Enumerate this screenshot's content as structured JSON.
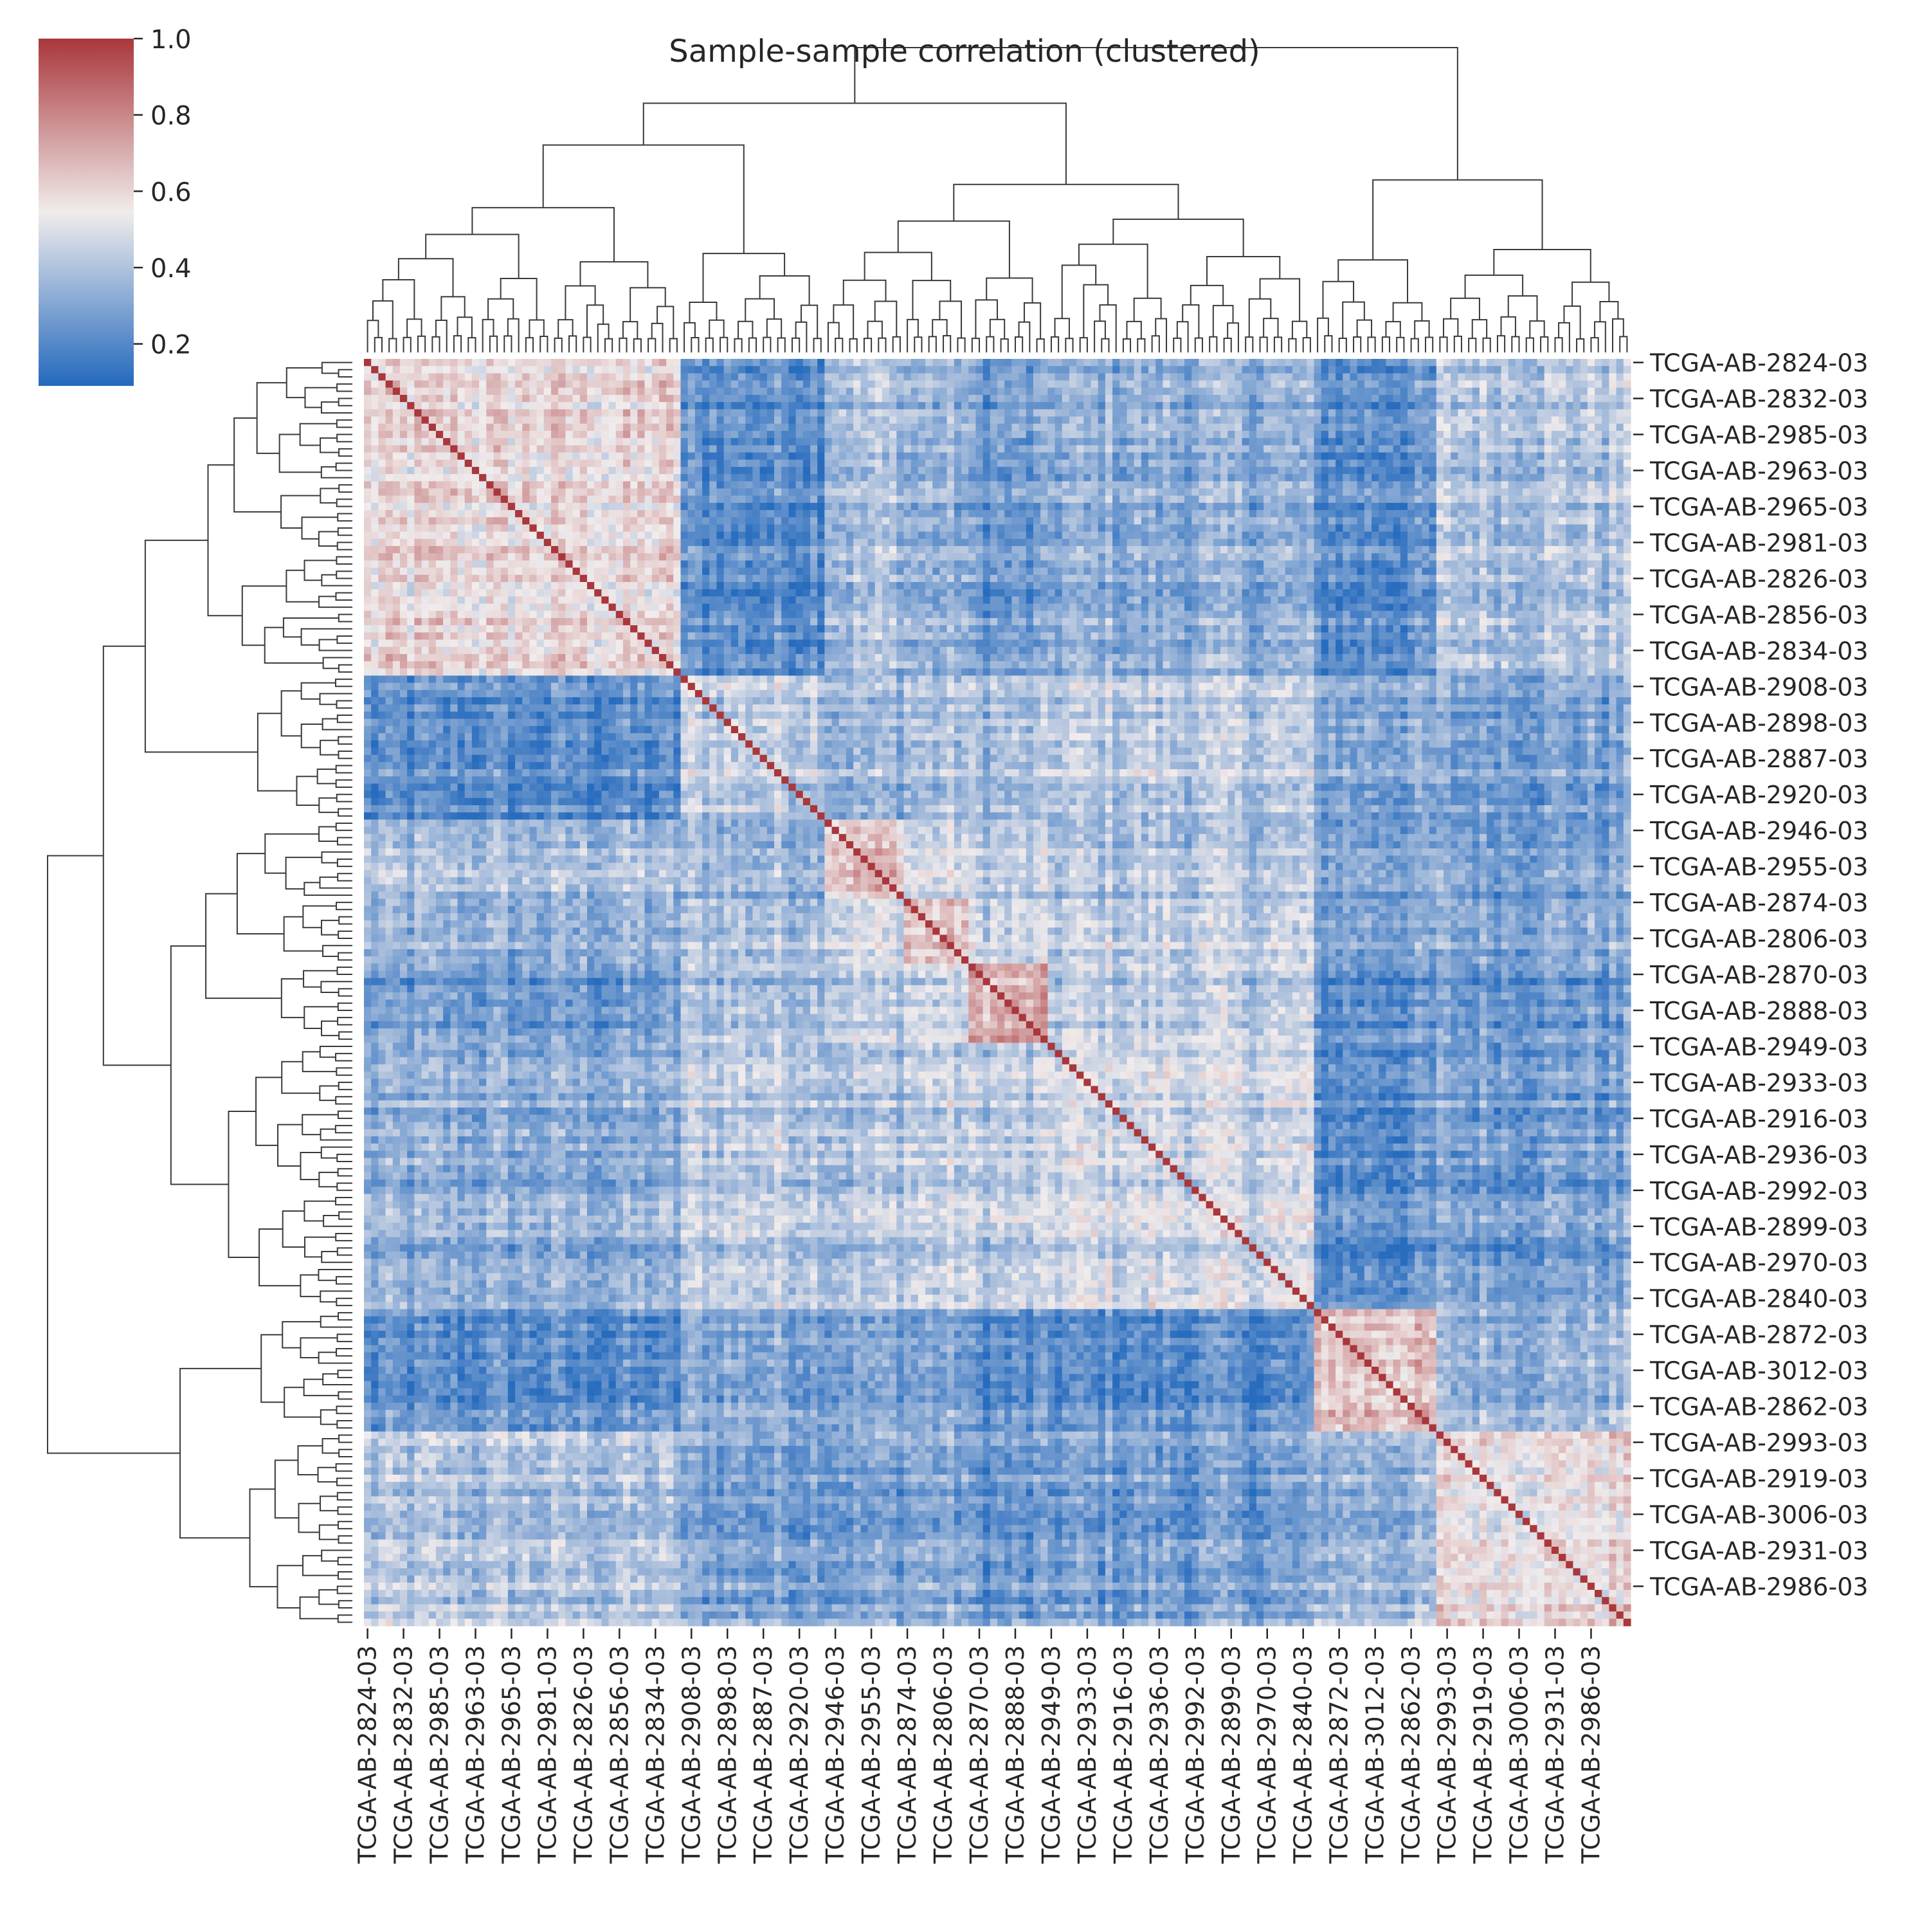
{
  "chart_data": {
    "type": "heatmap",
    "title": "Sample-sample correlation (clustered)",
    "description_note": "",
    "n_samples": 176,
    "tick_labels": [
      "TCGA-AB-2824-03",
      "TCGA-AB-2832-03",
      "TCGA-AB-2985-03",
      "TCGA-AB-2963-03",
      "TCGA-AB-2965-03",
      "TCGA-AB-2981-03",
      "TCGA-AB-2826-03",
      "TCGA-AB-2856-03",
      "TCGA-AB-2834-03",
      "TCGA-AB-2908-03",
      "TCGA-AB-2898-03",
      "TCGA-AB-2887-03",
      "TCGA-AB-2920-03",
      "TCGA-AB-2946-03",
      "TCGA-AB-2955-03",
      "TCGA-AB-2874-03",
      "TCGA-AB-2806-03",
      "TCGA-AB-2870-03",
      "TCGA-AB-2888-03",
      "TCGA-AB-2949-03",
      "TCGA-AB-2933-03",
      "TCGA-AB-2916-03",
      "TCGA-AB-2936-03",
      "TCGA-AB-2992-03",
      "TCGA-AB-2899-03",
      "TCGA-AB-2970-03",
      "TCGA-AB-2840-03",
      "TCGA-AB-2872-03",
      "TCGA-AB-3012-03",
      "TCGA-AB-2862-03",
      "TCGA-AB-2993-03",
      "TCGA-AB-2919-03",
      "TCGA-AB-3006-03",
      "TCGA-AB-2931-03",
      "TCGA-AB-2986-03"
    ],
    "tick_every": 5,
    "clusters": [
      {
        "start": 0,
        "end": 44,
        "within": 0.58
      },
      {
        "start": 44,
        "end": 64,
        "within": 0.45
      },
      {
        "start": 64,
        "end": 75,
        "within": 0.66
      },
      {
        "start": 75,
        "end": 84,
        "within": 0.64
      },
      {
        "start": 84,
        "end": 95,
        "within": 0.68
      },
      {
        "start": 95,
        "end": 132,
        "within": 0.47
      },
      {
        "start": 132,
        "end": 149,
        "within": 0.66
      },
      {
        "start": 149,
        "end": 176,
        "within": 0.58
      }
    ],
    "between_cluster": [
      [
        0,
        0.22,
        0.38,
        0.33,
        0.25,
        0.32,
        0.22,
        0.4
      ],
      [
        0.22,
        0,
        0.36,
        0.4,
        0.38,
        0.43,
        0.32,
        0.3
      ],
      [
        0.38,
        0.36,
        0,
        0.48,
        0.42,
        0.4,
        0.3,
        0.3
      ],
      [
        0.33,
        0.4,
        0.48,
        0,
        0.45,
        0.44,
        0.3,
        0.32
      ],
      [
        0.25,
        0.38,
        0.42,
        0.45,
        0,
        0.42,
        0.22,
        0.25
      ],
      [
        0.32,
        0.43,
        0.4,
        0.44,
        0.42,
        0,
        0.22,
        0.28
      ],
      [
        0.22,
        0.32,
        0.3,
        0.3,
        0.22,
        0.22,
        0,
        0.36
      ],
      [
        0.4,
        0.3,
        0.3,
        0.32,
        0.25,
        0.28,
        0.36,
        0
      ]
    ],
    "diagonal": 1.0,
    "colorbar": {
      "min": 0.09,
      "max": 1.0,
      "ticks": [
        0.2,
        0.4,
        0.6,
        0.8,
        1.0
      ],
      "tick_labels": [
        "0.2",
        "0.4",
        "0.6",
        "0.8",
        "1.0"
      ]
    },
    "colormap": "vlag",
    "colors": {
      "low": "#2369bd",
      "mid": "#f1ecec",
      "high": "#a9373b",
      "dendrogram": "#3a3a3a",
      "text": "#262626"
    }
  }
}
